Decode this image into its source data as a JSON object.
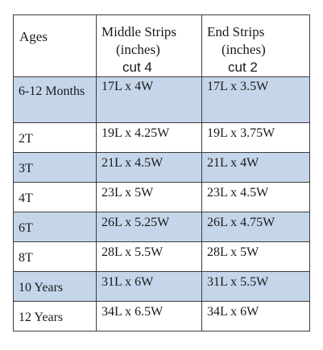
{
  "table": {
    "headers": {
      "ages": "Ages",
      "middle": [
        "Middle Strips",
        "(inches)",
        "cut 4"
      ],
      "end": [
        "End Strips",
        "(inches)",
        "cut 2"
      ]
    },
    "rows": [
      {
        "age": "6-12 Months",
        "middle": "17L x 4W",
        "end": "17L x 3.5W",
        "shaded": true
      },
      {
        "age": "2T",
        "middle": "19L x 4.25W",
        "end": "19L x 3.75W",
        "shaded": false
      },
      {
        "age": "3T",
        "middle": "21L x 4.5W",
        "end": "21L x 4W",
        "shaded": true
      },
      {
        "age": "4T",
        "middle": "23L x 5W",
        "end": "23L x 4.5W",
        "shaded": false
      },
      {
        "age": "6T",
        "middle": "26L x 5.25W",
        "end": "26L x 4.75W",
        "shaded": true
      },
      {
        "age": "8T",
        "middle": "28L x 5.5W",
        "end": "28L x 5W",
        "shaded": false
      },
      {
        "age": "10 Years",
        "middle": "31L x 6W",
        "end": "31L x 5.5W",
        "shaded": true
      },
      {
        "age": "12 Years",
        "middle": "34L x 6.5W",
        "end": "34L x 6W",
        "shaded": false
      }
    ],
    "colors": {
      "shade": "#c5d6ea",
      "border": "#3b3b3b"
    }
  }
}
